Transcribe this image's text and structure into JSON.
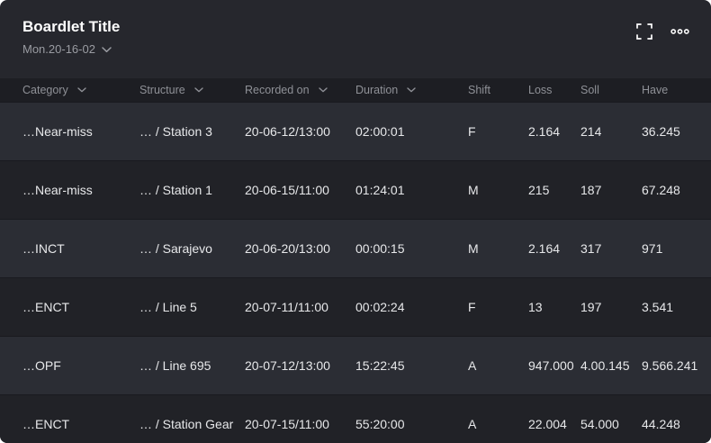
{
  "card": {
    "title": "Boardlet Title",
    "subtitle": "Mon.20-16-02",
    "icons": {
      "subtitle_chevron": "chevron-down-icon",
      "fullscreen": "fullscreen-icon",
      "more": "ellipsis-icon"
    }
  },
  "table": {
    "columns": [
      {
        "label": "Category",
        "sortable": true
      },
      {
        "label": "Structure",
        "sortable": true
      },
      {
        "label": "Recorded on",
        "sortable": true
      },
      {
        "label": "Duration",
        "sortable": true
      },
      {
        "label": "Shift",
        "sortable": false
      },
      {
        "label": "Loss",
        "sortable": false
      },
      {
        "label": "Soll",
        "sortable": false
      },
      {
        "label": "Have",
        "sortable": false
      }
    ],
    "rows": [
      [
        "…Near-miss",
        "… / Station 3",
        "20-06-12/13:00",
        "02:00:01",
        "F",
        "2.164",
        "214",
        "36.245"
      ],
      [
        "…Near-miss",
        "… / Station 1",
        "20-06-15/11:00",
        "01:24:01",
        "M",
        "215",
        "187",
        "67.248"
      ],
      [
        "…INCT",
        "… / Sarajevo",
        "20-06-20/13:00",
        "00:00:15",
        "M",
        "2.164",
        "317",
        "971"
      ],
      [
        "…ENCT",
        "… / Line 5",
        "20-07-11/11:00",
        "00:02:24",
        "F",
        "13",
        "197",
        "3.541"
      ],
      [
        "…OPF",
        "… / Line 695",
        "20-07-12/13:00",
        "15:22:45",
        "A",
        "947.000",
        "4.00.145",
        "9.566.241"
      ],
      [
        "…ENCT",
        "… / Station Gear",
        "20-07-15/11:00",
        "55:20:00",
        "A",
        "22.004",
        "54.000",
        "44.248"
      ]
    ]
  },
  "colors": {
    "card_bg": "#26272d",
    "thead_bg": "#1d1e23",
    "row_odd_bg": "#2b2d34",
    "row_even_bg": "#212227",
    "separator": "#191a1f",
    "title_color": "#ffffff",
    "subtitle_color": "#9a9ca2",
    "thead_color": "#8f9197",
    "cell_color": "#e7e8ea"
  }
}
